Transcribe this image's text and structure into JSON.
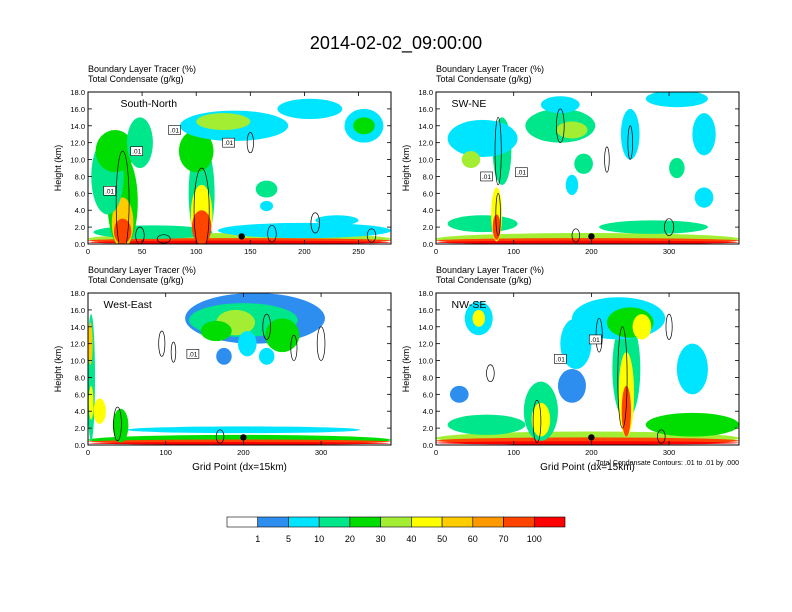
{
  "page_title": "2014-02-02_09:00:00",
  "colorbar": {
    "colors": [
      "#ffffff",
      "#2e8ef0",
      "#00e5ff",
      "#00e68a",
      "#00dd00",
      "#a3ee33",
      "#ffff00",
      "#ffcc00",
      "#ff9900",
      "#ff4400",
      "#ff0000"
    ],
    "labels": [
      "1",
      "5",
      "10",
      "20",
      "30",
      "40",
      "50",
      "60",
      "70",
      "100"
    ]
  },
  "contour_note": "Total Condensate Contours: .01 to .01 by .000",
  "chart_data": [
    {
      "type": "heatmap",
      "panel": "South-North",
      "title_lines": [
        "Boundary Layer Tracer   (%)",
        "Total Condensate   (g/kg)"
      ],
      "ylabel": "Height (km)",
      "xlabel": "",
      "xlim": [
        0,
        280
      ],
      "ylim": [
        0,
        18
      ],
      "xticks": [
        "0",
        "50",
        "100",
        "150",
        "200",
        "250"
      ],
      "xtick_values": [
        0,
        50,
        100,
        150,
        200,
        250
      ],
      "yticks": [
        "0.0",
        "2.0",
        "4.0",
        "6.0",
        "8.0",
        "10.0",
        "12.0",
        "14.0",
        "16.0",
        "18.0"
      ],
      "contour_labels": [
        ".01",
        ".01",
        ".01",
        ".01"
      ],
      "marker_x": 142
    },
    {
      "type": "heatmap",
      "panel": "SW-NE",
      "title_lines": [
        "Boundary Layer Tracer   (%)",
        "Total Condensate   (g/kg)"
      ],
      "ylabel": "Height (km)",
      "xlabel": "",
      "xlim": [
        0,
        390
      ],
      "ylim": [
        0,
        18
      ],
      "xticks": [
        "0",
        "100",
        "200",
        "300"
      ],
      "xtick_values": [
        0,
        100,
        200,
        300
      ],
      "yticks": [
        "0.0",
        "2.0",
        "4.0",
        "6.0",
        "8.0",
        "10.0",
        "12.0",
        "14.0",
        "16.0",
        "18.0"
      ],
      "contour_labels": [
        ".01",
        ".01"
      ],
      "marker_x": 200
    },
    {
      "type": "heatmap",
      "panel": "West-East",
      "title_lines": [
        "Boundary Layer Tracer   (%)",
        "Total Condensate   (g/kg)"
      ],
      "ylabel": "Height (km)",
      "xlabel": "Grid Point (dx=15km)",
      "xlim": [
        0,
        390
      ],
      "ylim": [
        0,
        18
      ],
      "xticks": [
        "0",
        "100",
        "200",
        "300"
      ],
      "xtick_values": [
        0,
        100,
        200,
        300
      ],
      "yticks": [
        "0.0",
        "2.0",
        "4.0",
        "6.0",
        "8.0",
        "10.0",
        "12.0",
        "14.0",
        "16.0",
        "18.0"
      ],
      "contour_labels": [
        ".01"
      ],
      "marker_x": 200
    },
    {
      "type": "heatmap",
      "panel": "NW-SE",
      "title_lines": [
        "Boundary Layer Tracer   (%)",
        "Total Condensate   (g/kg)"
      ],
      "ylabel": "Height (km)",
      "xlabel": "Grid Point (dx=15km)",
      "xlim": [
        0,
        390
      ],
      "ylim": [
        0,
        18
      ],
      "xticks": [
        "0",
        "100",
        "200",
        "300"
      ],
      "xtick_values": [
        0,
        100,
        200,
        300
      ],
      "yticks": [
        "0.0",
        "2.0",
        "4.0",
        "6.0",
        "8.0",
        "10.0",
        "12.0",
        "14.0",
        "16.0",
        "18.0"
      ],
      "contour_labels": [
        ".01",
        ".01"
      ],
      "marker_x": 200
    }
  ]
}
